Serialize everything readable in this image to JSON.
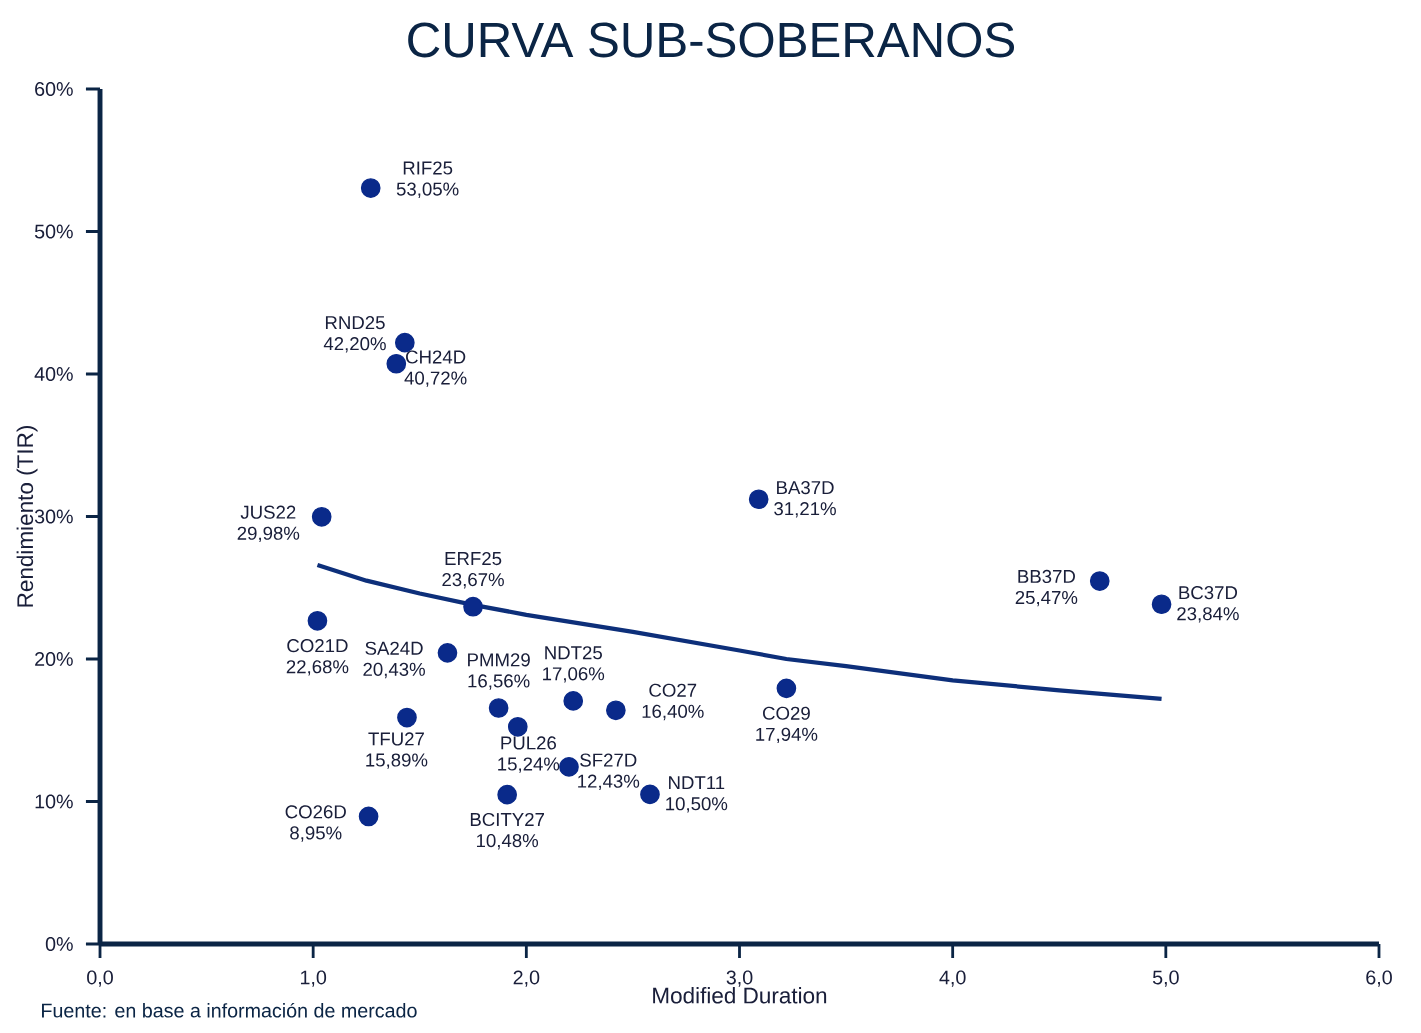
{
  "chart_data": {
    "type": "scatter",
    "title": "CURVA SUB-SOBERANOS",
    "xlabel": "Modified Duration",
    "ylabel": "Rendimiento (TIR)",
    "xlim": [
      0,
      6
    ],
    "ylim": [
      0,
      60
    ],
    "xticks": [
      {
        "value": 0,
        "label": "0,0"
      },
      {
        "value": 1,
        "label": "1,0"
      },
      {
        "value": 2,
        "label": "2,0"
      },
      {
        "value": 3,
        "label": "3,0"
      },
      {
        "value": 4,
        "label": "4,0"
      },
      {
        "value": 5,
        "label": "5,0"
      },
      {
        "value": 6,
        "label": "6,0"
      }
    ],
    "yticks": [
      {
        "value": 0,
        "label": "0%"
      },
      {
        "value": 10,
        "label": "10%"
      },
      {
        "value": 20,
        "label": "20%"
      },
      {
        "value": 30,
        "label": "30%"
      },
      {
        "value": 40,
        "label": "40%"
      },
      {
        "value": 50,
        "label": "50%"
      },
      {
        "value": 60,
        "label": "60%"
      }
    ],
    "series": [
      {
        "marker": "circle",
        "color": "#0a2a8a",
        "x": [
          1.27,
          1.43,
          1.39,
          1.04,
          1.02,
          1.75,
          1.63,
          1.87,
          1.96,
          2.22,
          2.42,
          1.44,
          2.2,
          1.91,
          2.58,
          1.26,
          3.09,
          3.22,
          4.69,
          4.98
        ],
        "values": [
          53.05,
          42.2,
          40.72,
          29.98,
          22.68,
          23.67,
          20.43,
          16.56,
          15.24,
          17.06,
          16.4,
          15.89,
          12.43,
          10.48,
          10.5,
          8.95,
          31.21,
          17.94,
          25.47,
          23.84
        ],
        "value_labels": [
          "53,05%",
          "42,20%",
          "40,72%",
          "29,98%",
          "22,68%",
          "23,67%",
          "20,43%",
          "16,56%",
          "15,24%",
          "17,06%",
          "16,40%",
          "15,89%",
          "12,43%",
          "10,48%",
          "10,50%",
          "8,95%",
          "31,21%",
          "17,94%",
          "25,47%",
          "23,84%"
        ]
      },
      {
        "type": "line",
        "color": "#0d2f7a",
        "marker": "none",
        "x": [
          1.02,
          1.25,
          1.5,
          1.75,
          2.0,
          2.5,
          3.0,
          3.22,
          3.5,
          4.0,
          4.5,
          4.98
        ],
        "values": [
          26.6,
          25.5,
          24.6,
          23.8,
          23.1,
          21.9,
          20.6,
          20.0,
          19.5,
          18.5,
          17.8,
          17.2
        ]
      }
    ],
    "annotations": [
      {
        "text": "RIF25",
        "x": 1.27,
        "y": 53.05
      },
      {
        "text": "RND25",
        "x": 1.43,
        "y": 42.2
      },
      {
        "text": "CH24D",
        "x": 1.39,
        "y": 40.72
      },
      {
        "text": "JUS22",
        "x": 1.04,
        "y": 29.98
      },
      {
        "text": "CO21D",
        "x": 1.02,
        "y": 22.68
      },
      {
        "text": "ERF25",
        "x": 1.75,
        "y": 23.67
      },
      {
        "text": "SA24D",
        "x": 1.63,
        "y": 20.43
      },
      {
        "text": "PMM29",
        "x": 1.87,
        "y": 16.56
      },
      {
        "text": "PUL26",
        "x": 1.96,
        "y": 15.24
      },
      {
        "text": "NDT25",
        "x": 2.22,
        "y": 17.06
      },
      {
        "text": "CO27",
        "x": 2.42,
        "y": 16.4
      },
      {
        "text": "TFU27",
        "x": 1.44,
        "y": 15.89
      },
      {
        "text": "SF27D",
        "x": 2.2,
        "y": 12.43
      },
      {
        "text": "BCITY27",
        "x": 1.91,
        "y": 10.48
      },
      {
        "text": "NDT11",
        "x": 2.58,
        "y": 10.5
      },
      {
        "text": "CO26D",
        "x": 1.26,
        "y": 8.95
      },
      {
        "text": "BA37D",
        "x": 3.09,
        "y": 31.21
      },
      {
        "text": "CO29",
        "x": 3.22,
        "y": 17.94
      },
      {
        "text": "BB37D",
        "x": 4.69,
        "y": 25.47
      },
      {
        "text": "BC37D",
        "x": 4.98,
        "y": 23.84
      },
      "Fuente: en base a información de mercado"
    ]
  }
}
